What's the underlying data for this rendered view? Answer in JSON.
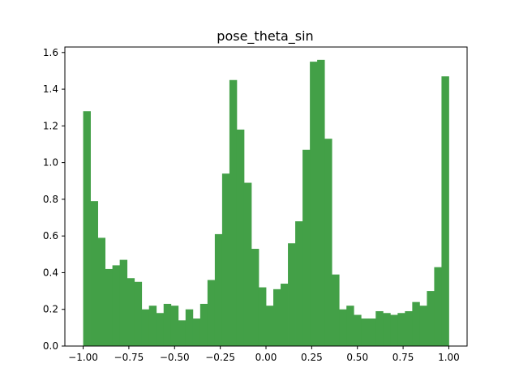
{
  "chart_data": {
    "type": "bar",
    "title": "pose_theta_sin",
    "xlabel": "",
    "ylabel": "",
    "xlim": [
      -1.1,
      1.1
    ],
    "ylim": [
      0.0,
      1.63
    ],
    "bar_color": "#43a047",
    "grid": false,
    "bin_width": 0.04,
    "bin_start": -1.0,
    "values": [
      1.28,
      0.79,
      0.59,
      0.42,
      0.44,
      0.47,
      0.37,
      0.35,
      0.2,
      0.22,
      0.18,
      0.23,
      0.22,
      0.14,
      0.2,
      0.15,
      0.23,
      0.36,
      0.61,
      0.94,
      1.45,
      1.18,
      0.89,
      0.53,
      0.32,
      0.22,
      0.31,
      0.34,
      0.56,
      0.68,
      1.07,
      1.55,
      1.56,
      1.13,
      0.39,
      0.2,
      0.22,
      0.17,
      0.15,
      0.15,
      0.19,
      0.18,
      0.17,
      0.18,
      0.19,
      0.24,
      0.22,
      0.3,
      0.43,
      1.47
    ],
    "x_ticks": [
      {
        "value": -1.0,
        "label": "−1.00"
      },
      {
        "value": -0.75,
        "label": "−0.75"
      },
      {
        "value": -0.5,
        "label": "−0.50"
      },
      {
        "value": -0.25,
        "label": "−0.25"
      },
      {
        "value": 0.0,
        "label": "0.00"
      },
      {
        "value": 0.25,
        "label": "0.25"
      },
      {
        "value": 0.5,
        "label": "0.50"
      },
      {
        "value": 0.75,
        "label": "0.75"
      },
      {
        "value": 1.0,
        "label": "1.00"
      }
    ],
    "y_ticks": [
      {
        "value": 0.0,
        "label": "0.0"
      },
      {
        "value": 0.2,
        "label": "0.2"
      },
      {
        "value": 0.4,
        "label": "0.4"
      },
      {
        "value": 0.6,
        "label": "0.6"
      },
      {
        "value": 0.8,
        "label": "0.8"
      },
      {
        "value": 1.0,
        "label": "1.0"
      },
      {
        "value": 1.2,
        "label": "1.2"
      },
      {
        "value": 1.4,
        "label": "1.4"
      },
      {
        "value": 1.6,
        "label": "1.6"
      }
    ]
  }
}
